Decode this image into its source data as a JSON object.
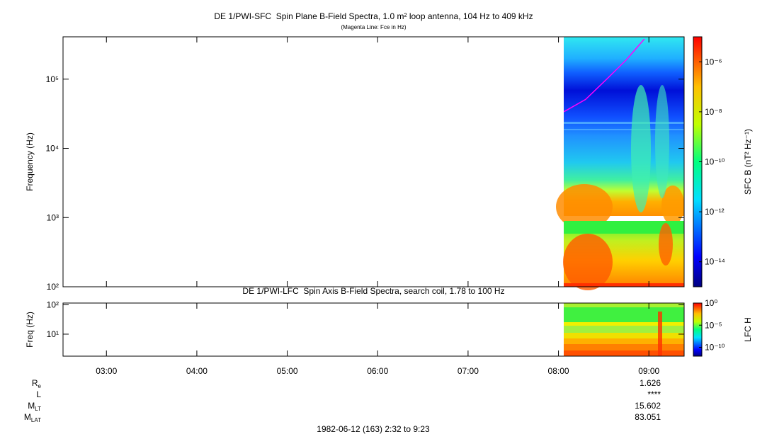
{
  "chart_data": [
    {
      "type": "spectrogram",
      "title": "DE 1/PWI-SFC  Spin Plane B-Field Spectra, 1.0 m² loop antenna, 104 Hz to 409 kHz",
      "subtitle": "(Magenta Line: Fce in Hz)",
      "y_label": "Frequency (Hz)",
      "log_y": true,
      "xlim": [
        2.52,
        9.39
      ],
      "ylim": [
        100,
        409000
      ],
      "yticks": [
        {
          "value": 100,
          "label": "10²"
        },
        {
          "value": 1000,
          "label": "10³"
        },
        {
          "value": 10000,
          "label": "10⁴"
        },
        {
          "value": 100000,
          "label": "10⁵"
        }
      ],
      "series": [
        {
          "color": "#ff00ff",
          "x": [
            8.06,
            8.3,
            8.55,
            8.75,
            8.95
          ],
          "values": [
            33800,
            51000,
            105000,
            190000,
            380000
          ]
        }
      ],
      "colorbar": {
        "label": "SFC B (nT² Hz⁻¹)",
        "zlim": [
          1e-15,
          1e-05
        ],
        "ticks": [
          {
            "value": 1e-06,
            "label": "10⁻⁶"
          },
          {
            "value": 1e-08,
            "label": "10⁻⁸"
          },
          {
            "value": 1e-10,
            "label": "10⁻¹⁰"
          },
          {
            "value": 1e-12,
            "label": "10⁻¹²"
          },
          {
            "value": 1e-14,
            "label": "10⁻¹⁴"
          }
        ]
      }
    },
    {
      "type": "spectrogram",
      "title": "DE 1/PWI-LFC  Spin Axis B-Field Spectra, search coil, 1.78 to 100 Hz",
      "y_label": "Freq (Hz)",
      "log_y": true,
      "xlim": [
        2.52,
        9.39
      ],
      "ylim": [
        1.78,
        115
      ],
      "yticks": [
        {
          "value": 10,
          "label": "10¹"
        },
        {
          "value": 100,
          "label": "10²"
        }
      ],
      "xticks": [
        {
          "value": 3,
          "label": "03:00"
        },
        {
          "value": 4,
          "label": "04:00"
        },
        {
          "value": 5,
          "label": "05:00"
        },
        {
          "value": 6,
          "label": "06:00"
        },
        {
          "value": 7,
          "label": "07:00"
        },
        {
          "value": 8,
          "label": "08:00"
        },
        {
          "value": 9,
          "label": "09:00"
        }
      ],
      "colorbar": {
        "label": "LFC H",
        "zlim": [
          1e-12,
          1
        ],
        "ticks": [
          {
            "value": 1,
            "label": "10⁰"
          },
          {
            "value": 1e-05,
            "label": "10⁻⁵"
          },
          {
            "value": 1e-10,
            "label": "10⁻¹⁰"
          }
        ]
      }
    }
  ],
  "ephemeris": [
    {
      "name": "R",
      "sub": "e",
      "value": 1.626
    },
    {
      "name": "L",
      "value": "****"
    },
    {
      "name": "M",
      "sub": "LT",
      "value": 15.602
    },
    {
      "name": "M",
      "sub": "LAT",
      "value": 83.051
    }
  ],
  "footer": "1982-06-12 (163) 2:32 to 9:23"
}
